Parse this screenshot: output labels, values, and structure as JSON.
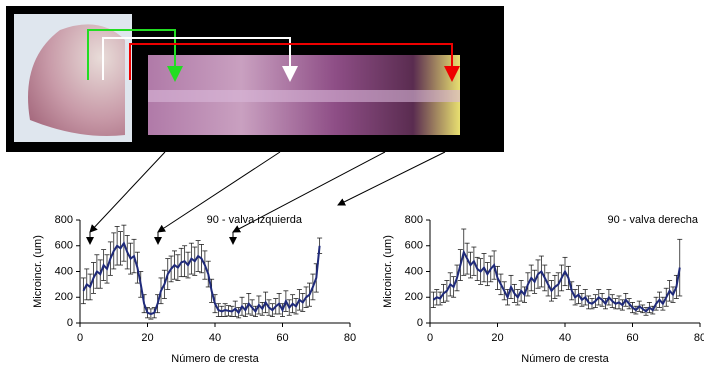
{
  "chart_data": [
    {
      "type": "line",
      "title": "90 - valva izquierda",
      "x_label": "Número de cresta",
      "y_label": "Microincr. (um)",
      "x": [
        1,
        2,
        3,
        4,
        5,
        6,
        7,
        8,
        9,
        10,
        11,
        12,
        13,
        14,
        15,
        16,
        17,
        18,
        19,
        20,
        21,
        22,
        23,
        24,
        25,
        26,
        27,
        28,
        29,
        30,
        31,
        32,
        33,
        34,
        35,
        36,
        37,
        38,
        39,
        40,
        41,
        42,
        43,
        44,
        45,
        46,
        47,
        48,
        49,
        50,
        51,
        52,
        53,
        54,
        55,
        56,
        57,
        58,
        59,
        60,
        61,
        62,
        63,
        64,
        65,
        66,
        67,
        68,
        69,
        70,
        71
      ],
      "values": [
        250,
        300,
        280,
        350,
        400,
        380,
        450,
        420,
        500,
        560,
        600,
        580,
        620,
        550,
        500,
        520,
        430,
        300,
        150,
        80,
        70,
        80,
        150,
        250,
        300,
        380,
        420,
        450,
        430,
        470,
        480,
        450,
        500,
        480,
        520,
        500,
        450,
        380,
        250,
        150,
        100,
        90,
        100,
        95,
        90,
        110,
        80,
        130,
        100,
        150,
        120,
        90,
        140,
        110,
        160,
        120,
        100,
        130,
        150,
        100,
        170,
        120,
        150,
        130,
        180,
        160,
        200,
        220,
        280,
        350,
        600
      ],
      "errors": [
        100,
        120,
        100,
        120,
        130,
        110,
        120,
        110,
        130,
        140,
        150,
        130,
        140,
        130,
        120,
        130,
        120,
        100,
        70,
        40,
        40,
        40,
        70,
        100,
        110,
        120,
        100,
        110,
        100,
        110,
        120,
        100,
        120,
        110,
        120,
        110,
        110,
        100,
        90,
        70,
        50,
        40,
        50,
        40,
        40,
        60,
        40,
        70,
        50,
        80,
        60,
        40,
        70,
        50,
        80,
        60,
        50,
        60,
        80,
        50,
        80,
        60,
        70,
        60,
        80,
        70,
        80,
        90,
        100,
        110,
        60
      ],
      "color": "#1f2a7a",
      "xlim": [
        0,
        80
      ],
      "ylim": [
        0,
        800
      ],
      "xticks": [
        0,
        20,
        40,
        60,
        80
      ],
      "yticks": [
        0,
        200,
        400,
        600,
        800
      ]
    },
    {
      "type": "line",
      "title": "90 - valva derecha",
      "x_label": "Número de cresta",
      "y_label": "Microincr. (um)",
      "x": [
        1,
        2,
        3,
        4,
        5,
        6,
        7,
        8,
        9,
        10,
        11,
        12,
        13,
        14,
        15,
        16,
        17,
        18,
        19,
        20,
        21,
        22,
        23,
        24,
        25,
        26,
        27,
        28,
        29,
        30,
        31,
        32,
        33,
        34,
        35,
        36,
        37,
        38,
        39,
        40,
        41,
        42,
        43,
        44,
        45,
        46,
        47,
        48,
        49,
        50,
        51,
        52,
        53,
        54,
        55,
        56,
        57,
        58,
        59,
        60,
        61,
        62,
        63,
        64,
        65,
        66,
        67,
        68,
        69,
        70,
        71,
        72,
        73,
        74
      ],
      "values": [
        180,
        200,
        190,
        230,
        250,
        300,
        280,
        350,
        450,
        550,
        500,
        450,
        480,
        420,
        400,
        430,
        380,
        420,
        450,
        350,
        300,
        250,
        200,
        280,
        230,
        200,
        250,
        220,
        300,
        350,
        320,
        380,
        400,
        350,
        300,
        250,
        280,
        300,
        350,
        400,
        350,
        250,
        200,
        220,
        180,
        200,
        160,
        150,
        170,
        200,
        180,
        150,
        200,
        170,
        150,
        160,
        140,
        180,
        150,
        120,
        100,
        130,
        110,
        90,
        120,
        100,
        150,
        180,
        150,
        200,
        250,
        220,
        280,
        430
      ],
      "errors": [
        60,
        60,
        50,
        70,
        80,
        90,
        80,
        100,
        120,
        180,
        120,
        100,
        110,
        90,
        100,
        110,
        90,
        100,
        110,
        90,
        80,
        70,
        60,
        90,
        70,
        60,
        80,
        60,
        90,
        100,
        90,
        110,
        120,
        100,
        90,
        80,
        90,
        90,
        100,
        110,
        90,
        70,
        60,
        70,
        50,
        60,
        50,
        40,
        50,
        60,
        50,
        40,
        60,
        50,
        40,
        50,
        40,
        50,
        40,
        40,
        30,
        40,
        30,
        30,
        40,
        30,
        50,
        60,
        50,
        70,
        80,
        60,
        90,
        220
      ],
      "color": "#1f2a7a",
      "xlim": [
        0,
        80
      ],
      "ylim": [
        0,
        800
      ],
      "xticks": [
        0,
        20,
        40,
        60,
        80
      ],
      "yticks": [
        0,
        200,
        400,
        600,
        800
      ]
    }
  ]
}
